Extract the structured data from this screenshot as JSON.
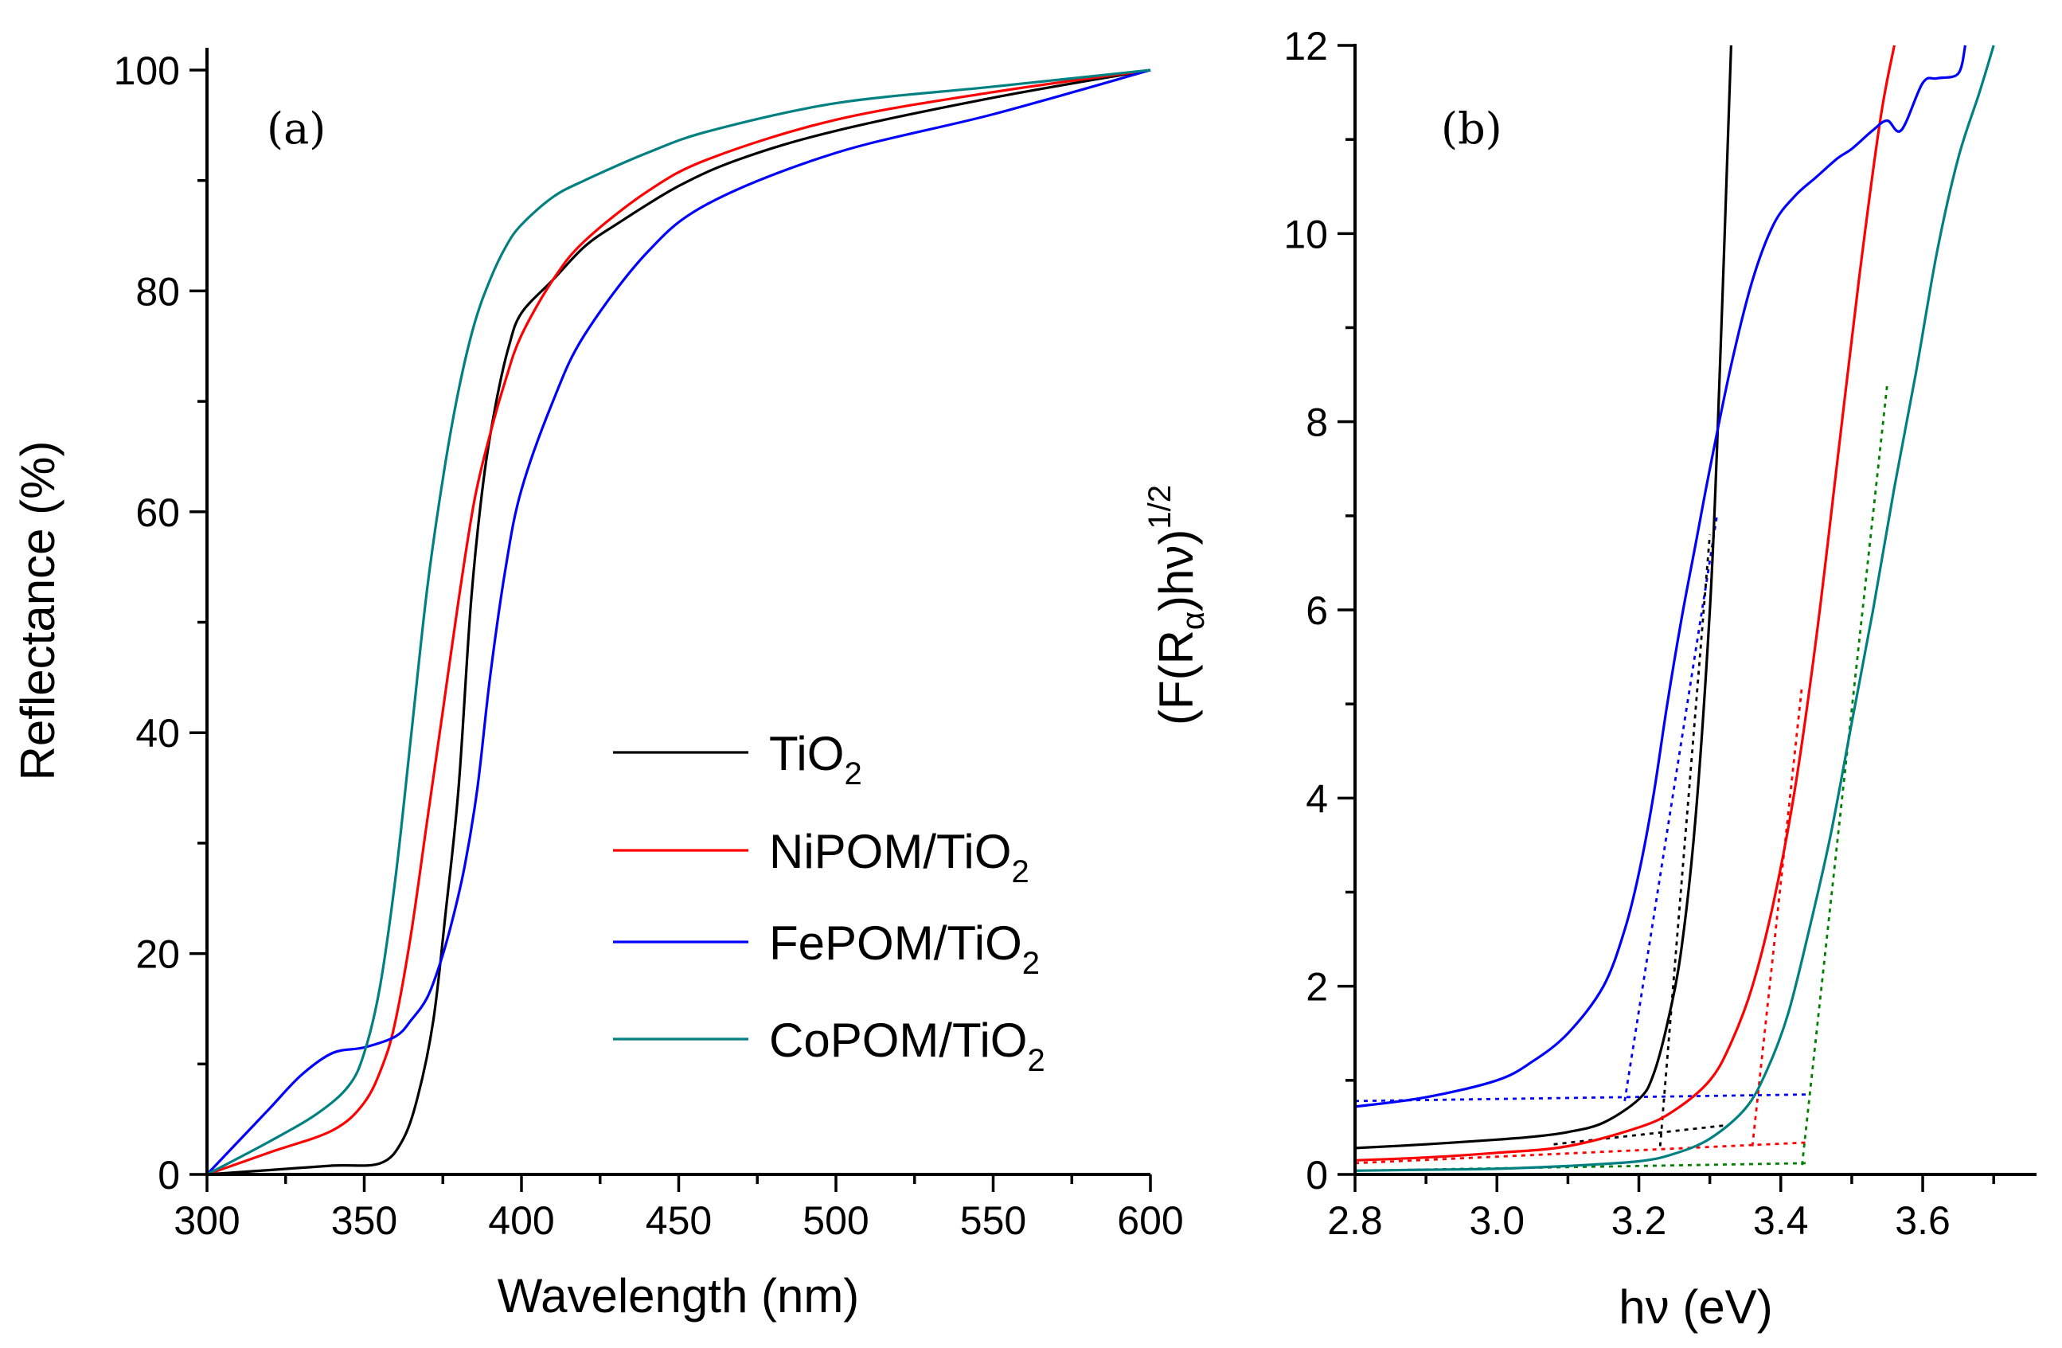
{
  "chart_data": [
    {
      "panel_label": "(a)",
      "type": "line",
      "xlabel": "Wavelength (nm)",
      "ylabel": "Reflectance (%)",
      "xlim": [
        300,
        600
      ],
      "ylim": [
        0,
        100
      ],
      "xticks": [
        "300",
        "350",
        "400",
        "450",
        "500",
        "550",
        "600"
      ],
      "yticks": [
        "0",
        "20",
        "40",
        "60",
        "80",
        "100"
      ],
      "legend_position": "center-right",
      "series": [
        {
          "name": "TiO",
          "subscript": "2",
          "color": "#000000",
          "x": [
            300,
            320,
            340,
            355,
            362,
            367,
            372,
            376,
            380,
            384,
            388,
            392,
            396,
            400,
            410,
            420,
            430,
            450,
            470,
            500,
            550,
            600
          ],
          "y": [
            0,
            0.4,
            0.8,
            1,
            3,
            7,
            14,
            24,
            35,
            52,
            63,
            70,
            75,
            78,
            81,
            84,
            86,
            89.5,
            92,
            94.5,
            97.5,
            100
          ]
        },
        {
          "name": "NiPOM/TiO",
          "subscript": "2",
          "color": "#ff0000",
          "x": [
            300,
            320,
            340,
            350,
            356,
            360,
            365,
            370,
            375,
            380,
            385,
            390,
            395,
            400,
            410,
            420,
            440,
            460,
            500,
            550,
            600
          ],
          "y": [
            0,
            2,
            4,
            6.5,
            10,
            14,
            22,
            32,
            42,
            52,
            61,
            67,
            72,
            76,
            81,
            84.5,
            89,
            92,
            95.5,
            98,
            100
          ]
        },
        {
          "name": "FePOM/TiO",
          "subscript": "2",
          "color": "#0000ff",
          "x": [
            300,
            310,
            320,
            330,
            340,
            350,
            360,
            365,
            370,
            374,
            378,
            382,
            386,
            390,
            395,
            400,
            410,
            420,
            440,
            460,
            500,
            550,
            600
          ],
          "y": [
            0,
            3,
            6,
            9,
            11,
            11.5,
            12.5,
            14,
            16,
            19,
            23,
            28,
            35,
            45,
            55,
            62,
            70,
            76,
            83.5,
            88,
            92.5,
            96,
            100
          ]
        },
        {
          "name": "CoPOM/TiO",
          "subscript": "2",
          "color": "#008080",
          "x": [
            300,
            320,
            335,
            345,
            350,
            355,
            360,
            365,
            370,
            375,
            380,
            385,
            390,
            395,
            400,
            410,
            420,
            440,
            460,
            500,
            550,
            600
          ],
          "y": [
            0,
            3,
            5.5,
            8,
            11,
            17,
            27,
            40,
            53,
            63,
            71,
            77,
            81,
            84,
            86,
            88.5,
            90,
            92.5,
            94.5,
            97,
            98.5,
            100
          ]
        }
      ]
    },
    {
      "panel_label": "(b)",
      "type": "line",
      "xlabel": "hν (eV)",
      "ylabel": "(F(Rα)hν)1/2",
      "ylabel_main": "(F(R",
      "ylabel_sub": "α",
      "ylabel_mid": ")hν)",
      "ylabel_sup": "1/2",
      "xlim": [
        2.8,
        3.72
      ],
      "ylim": [
        0,
        12
      ],
      "xticks": [
        "2.8",
        "3.0",
        "3.2",
        "3.4",
        "3.6"
      ],
      "yticks": [
        "0",
        "2",
        "4",
        "6",
        "8",
        "10",
        "12"
      ],
      "series": [
        {
          "name": "TiO2",
          "color": "#000000",
          "x": [
            2.8,
            2.9,
            3.0,
            3.05,
            3.1,
            3.15,
            3.2,
            3.22,
            3.24,
            3.26,
            3.28,
            3.3,
            3.31,
            3.32,
            3.33
          ],
          "y": [
            0.28,
            0.32,
            0.37,
            0.4,
            0.45,
            0.55,
            0.8,
            1.05,
            1.6,
            2.4,
            3.8,
            6.0,
            7.7,
            9.8,
            12
          ]
        },
        {
          "name": "NiPOM/TiO2",
          "color": "#ff0000",
          "x": [
            2.8,
            2.9,
            3.0,
            3.1,
            3.2,
            3.25,
            3.3,
            3.33,
            3.36,
            3.39,
            3.42,
            3.45,
            3.48,
            3.51,
            3.54,
            3.56
          ],
          "y": [
            0.15,
            0.18,
            0.23,
            0.3,
            0.5,
            0.68,
            1.0,
            1.4,
            2.0,
            2.9,
            4.1,
            5.7,
            7.6,
            9.5,
            11.2,
            12
          ]
        },
        {
          "name": "FePOM/TiO2",
          "color": "#0000ff",
          "x": [
            2.8,
            2.9,
            3.0,
            3.05,
            3.1,
            3.15,
            3.18,
            3.2,
            3.22,
            3.24,
            3.26,
            3.28,
            3.3,
            3.33,
            3.36,
            3.39,
            3.42,
            3.45,
            3.48,
            3.5,
            3.53,
            3.55,
            3.57,
            3.6,
            3.62,
            3.65,
            3.66
          ],
          "y": [
            0.72,
            0.82,
            1.0,
            1.2,
            1.5,
            2.0,
            2.6,
            3.2,
            4.0,
            5.0,
            5.9,
            6.7,
            7.5,
            8.6,
            9.5,
            10.1,
            10.4,
            10.6,
            10.8,
            10.9,
            11.1,
            11.2,
            11.1,
            11.6,
            11.65,
            11.7,
            12
          ]
        },
        {
          "name": "CoPOM/TiO2",
          "color": "#008080",
          "x": [
            2.8,
            2.9,
            3.0,
            3.1,
            3.2,
            3.25,
            3.3,
            3.35,
            3.38,
            3.41,
            3.44,
            3.47,
            3.5,
            3.53,
            3.56,
            3.59,
            3.62,
            3.65,
            3.68,
            3.7
          ],
          "y": [
            0.04,
            0.05,
            0.06,
            0.09,
            0.14,
            0.22,
            0.38,
            0.7,
            1.1,
            1.7,
            2.6,
            3.6,
            4.8,
            6.0,
            7.3,
            8.5,
            9.8,
            10.8,
            11.5,
            12
          ]
        }
      ],
      "tangent_guides": [
        {
          "color": "#0000ff",
          "x": [
            2.8,
            3.44
          ],
          "y": [
            0.78,
            0.85
          ]
        },
        {
          "color": "#0000ff",
          "x": [
            3.18,
            3.31
          ],
          "y": [
            0.78,
            7.0
          ]
        },
        {
          "color": "#000000",
          "x": [
            3.08,
            3.32
          ],
          "y": [
            0.32,
            0.52
          ]
        },
        {
          "color": "#000000",
          "x": [
            3.23,
            3.3
          ],
          "y": [
            0.3,
            6.8
          ]
        },
        {
          "color": "#ff0000",
          "x": [
            2.8,
            3.44
          ],
          "y": [
            0.12,
            0.34
          ]
        },
        {
          "color": "#ff0000",
          "x": [
            3.36,
            3.43
          ],
          "y": [
            0.3,
            5.2
          ]
        },
        {
          "color": "#008000",
          "x": [
            2.8,
            3.44
          ],
          "y": [
            0.04,
            0.12
          ]
        },
        {
          "color": "#008000",
          "x": [
            3.43,
            3.55
          ],
          "y": [
            0.1,
            8.4
          ]
        }
      ]
    }
  ]
}
